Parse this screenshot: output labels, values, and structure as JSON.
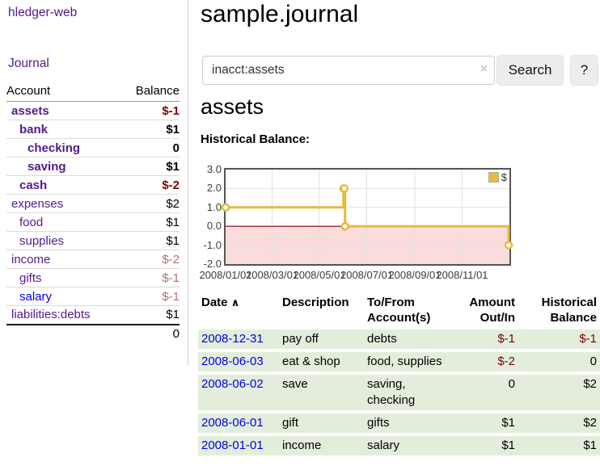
{
  "colors": {
    "link_purple": "#551A8B",
    "link_blue": "#0000EE",
    "negative": "#800000",
    "negative_muted": "#B76E6E",
    "row_green": "#E2EEDB",
    "chart_line": "#E8B93C",
    "chart_negative_fill": "#FBDCDC",
    "chart_zero_line": "#800000",
    "chart_border": "#545454"
  },
  "sidebar": {
    "app_title": "hledger-web",
    "journal_link": "Journal",
    "account_header": "Account",
    "balance_header": "Balance",
    "accounts": [
      {
        "name": "assets",
        "balance": "$-1"
      },
      {
        "name": "bank",
        "balance": "$1"
      },
      {
        "name": "checking",
        "balance": "0"
      },
      {
        "name": "saving",
        "balance": "$1"
      },
      {
        "name": "cash",
        "balance": "$-2"
      },
      {
        "name": "expenses",
        "balance": "$2"
      },
      {
        "name": "food",
        "balance": "$1"
      },
      {
        "name": "supplies",
        "balance": "$1"
      },
      {
        "name": "income",
        "balance": "$-2"
      },
      {
        "name": "gifts",
        "balance": "$-1"
      },
      {
        "name": "salary",
        "balance": "$-1"
      },
      {
        "name": "liabilities:debts",
        "balance": "$1"
      }
    ],
    "total": "0"
  },
  "main": {
    "title": "sample.journal",
    "search": {
      "value": "inacct:assets",
      "clear_icon": "×",
      "button_label": "Search",
      "help_label": "?"
    },
    "account_heading": "assets",
    "chart_title": "Historical Balance:",
    "register": {
      "headers": {
        "date": "Date",
        "sort_indicator": "∧",
        "description": "Description",
        "tofrom": "To/From Account(s)",
        "amount": "Amount Out/In",
        "balance": "Historical Balance"
      },
      "rows": [
        {
          "date": "2008-12-31",
          "description": "pay off",
          "tofrom": "debts",
          "amount": "$-1",
          "balance": "$-1"
        },
        {
          "date": "2008-06-03",
          "description": "eat & shop",
          "tofrom": "food, supplies",
          "amount": "$-2",
          "balance": "0"
        },
        {
          "date": "2008-06-02",
          "description": "save",
          "tofrom": "saving, checking",
          "amount": "0",
          "balance": "$2"
        },
        {
          "date": "2008-06-01",
          "description": "gift",
          "tofrom": "gifts",
          "amount": "$1",
          "balance": "$2"
        },
        {
          "date": "2008-01-01",
          "description": "income",
          "tofrom": "salary",
          "amount": "$1",
          "balance": "$1"
        }
      ]
    }
  },
  "chart_data": {
    "type": "line",
    "style": "step",
    "title": "Historical Balance:",
    "x_range": [
      "2008-01-01",
      "2009-01-01"
    ],
    "ylim": [
      -2,
      3
    ],
    "yticks": [
      "3.0",
      "2.0",
      "1.0",
      "0.0",
      "-1.0",
      "-2.0"
    ],
    "xticks": [
      "2008/01/01",
      "2008/03/01",
      "2008/05/01",
      "2008/07/01",
      "2008/09/01",
      "2008/11/01"
    ],
    "grid": true,
    "legend_position": "top-right",
    "series": [
      {
        "name": "$",
        "color": "#E8B93C",
        "points": [
          [
            "2008-01-01",
            1
          ],
          [
            "2008-06-01",
            2
          ],
          [
            "2008-06-02",
            2
          ],
          [
            "2008-06-03",
            0
          ],
          [
            "2008-12-31",
            -1
          ]
        ]
      }
    ]
  }
}
